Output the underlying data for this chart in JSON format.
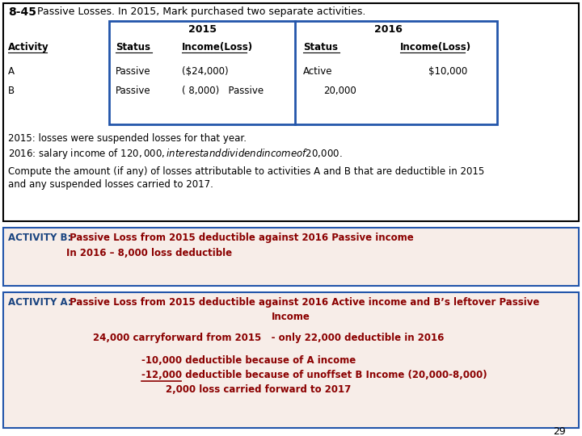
{
  "title_bold": "8-45",
  "title_normal": " Passive Losses. In 2015, Mark purchased two separate activities.",
  "bg_color": "#ffffff",
  "outer_box_color": "#000000",
  "table_box_color": "#2255aa",
  "activity_box_bg": "#f7ede8",
  "activity_box_border": "#2255aa",
  "red_color": "#8b0000",
  "blue_color": "#1a4480",
  "black_color": "#000000",
  "page_number": "29",
  "table_col2015": "2015",
  "table_col2016": "2016",
  "table_headers": [
    "Activity",
    "Status",
    "Income(Loss)",
    "Status",
    "Income(Loss)"
  ],
  "row_a": [
    "A",
    "Passive",
    "($24,000)",
    "Active",
    "$10,000"
  ],
  "row_b_left": [
    "B",
    "Passive",
    "( 8,000)   Passive"
  ],
  "row_b_right": [
    "",
    "20,000"
  ],
  "text_line1": "2015: losses were suspended losses for that year.",
  "text_line2": "2016: salary income of $120,000, interest and dividend income of $20,000.",
  "text_line3": "Compute the amount (if any) of losses attributable to activities A and B that are deductible in 2015",
  "text_line4": "and any suspended losses carried to 2017.",
  "act_b_label": "ACTIVITY B:",
  "act_b_line1": " Passive Loss from 2015 deductible against 2016 Passive income",
  "act_b_line2": "In 2016 – 8,000 loss deductible",
  "act_a_label": "ACTIVITY A:",
  "act_a_line1": " Passive Loss from 2015 deductible against 2016 Active income and B’s leftover Passive",
  "act_a_line2": "Income",
  "act_a_line3": "24,000 carryforward from 2015   - only 22,000 deductible in 2016",
  "act_a_line4": "-10,000 deductible because of A income",
  "act_a_line5": "-12,000 deductible because of unoffset B Income (20,000-8,000)",
  "act_a_line6": "2,000 loss carried forward to 2017"
}
